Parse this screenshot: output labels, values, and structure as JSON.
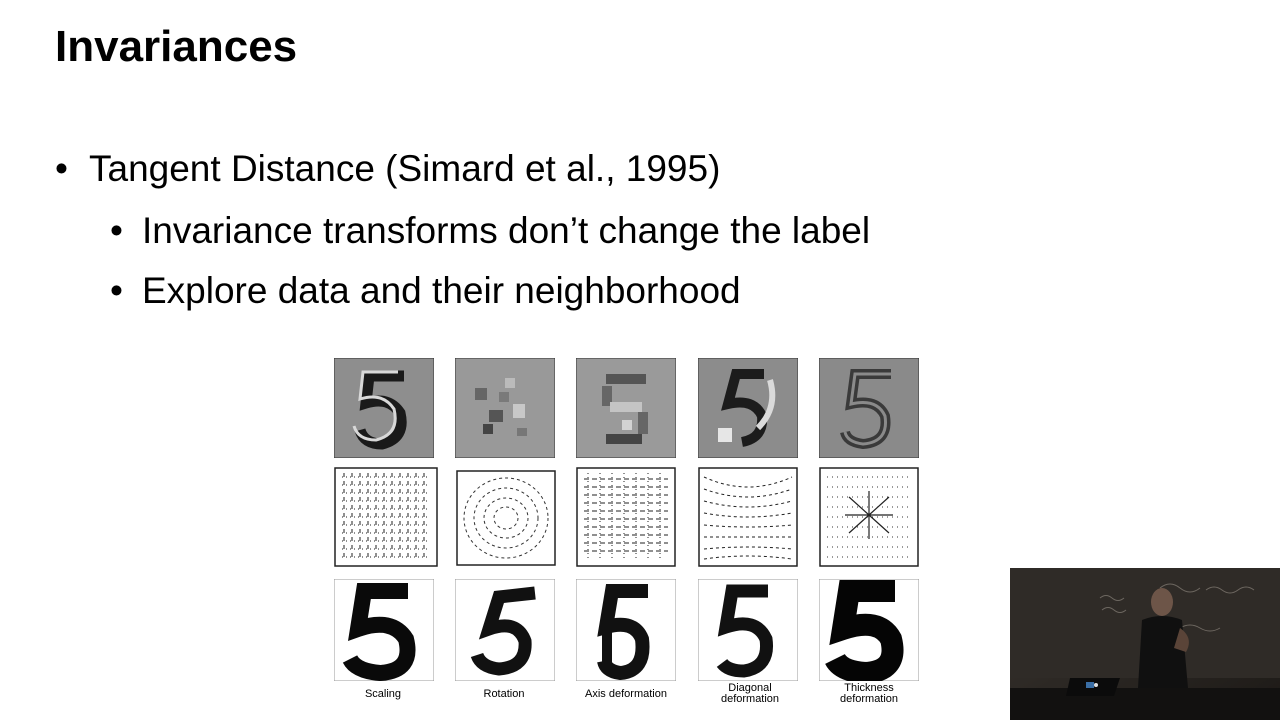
{
  "slide": {
    "title": "Invariances",
    "bullets": [
      {
        "level": 1,
        "text": "Tangent Distance (Simard et al., 1995)"
      },
      {
        "level": 2,
        "text": "Invariance transforms don’t change the label"
      },
      {
        "level": 2,
        "text": "Explore data and their neighborhood"
      }
    ]
  },
  "figure": {
    "captions": [
      "Scaling",
      "Rotation",
      "Axis deformation",
      "Diagonal deformation",
      "Thickness deformation"
    ],
    "caption_lines": [
      [
        "Scaling"
      ],
      [
        "Rotation"
      ],
      [
        "Axis deformation"
      ],
      [
        "Diagonal",
        "deformation"
      ],
      [
        "Thickness",
        "deformation"
      ]
    ]
  },
  "webcam": {
    "board_text": [
      "d(x_i)",
      "δ(x_i) g(x..)",
      "distity",
      "rnfoly"
    ]
  },
  "colors": {
    "background": "#ffffff",
    "text": "#000000",
    "tile_gray": "#8a8a8a",
    "webcam_bg": "#2a2622"
  }
}
